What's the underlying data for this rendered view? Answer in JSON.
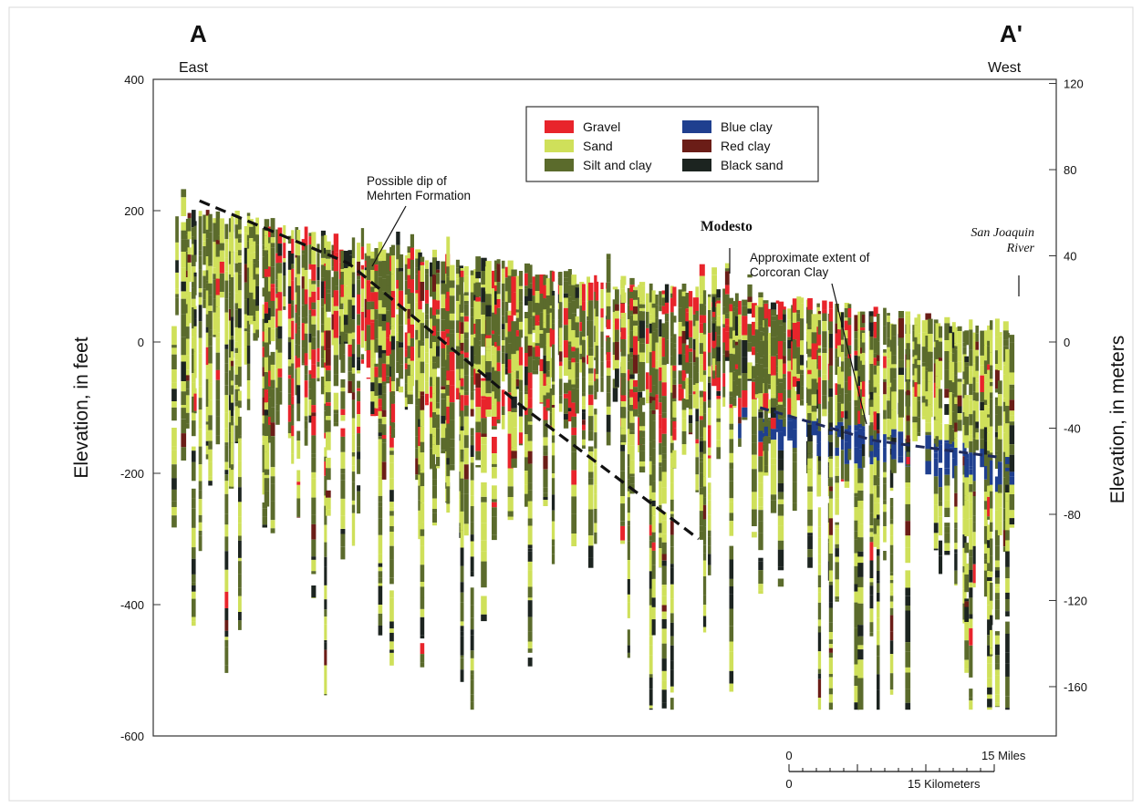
{
  "chart_data": {
    "type": "cross-section",
    "section_start": "A",
    "section_end": "A'",
    "left_direction": "East",
    "right_direction": "West",
    "ylabel_left": "Elevation, in feet",
    "ylabel_right": "Elevation, in meters",
    "ylim_feet": [
      -600,
      400
    ],
    "ylim_meters": [
      -182.88,
      121.92
    ],
    "yticks_feet": [
      "400",
      "200",
      "0",
      "-200",
      "-400",
      "-600"
    ],
    "yticks_meters": [
      "120",
      "80",
      "40",
      "0",
      "-40",
      "-80",
      "-120",
      "-160"
    ],
    "legend_position": "top-center",
    "legend": [
      {
        "label": "Gravel",
        "color": "#e8242b"
      },
      {
        "label": "Sand",
        "color": "#cfe05a"
      },
      {
        "label": "Silt and clay",
        "color": "#5b6b2c"
      },
      {
        "label": "Blue clay",
        "color": "#1f3f8f"
      },
      {
        "label": "Red clay",
        "color": "#6b1d17"
      },
      {
        "label": "Black sand",
        "color": "#1c2420"
      }
    ],
    "annotations": {
      "mehrten": "Possible dip of\nMehrten Formation",
      "modesto": "Modesto",
      "corcoran": "Approximate extent of\nCorcoran Clay",
      "river": "San Joaquin\nRiver"
    },
    "mehrten_dip_feet": [
      [
        0.03,
        215
      ],
      [
        0.2,
        120
      ],
      [
        0.4,
        -100
      ],
      [
        0.6,
        -300
      ]
    ],
    "corcoran_clay_feet": [
      [
        0.67,
        -100
      ],
      [
        0.8,
        -150
      ],
      [
        0.94,
        -175
      ]
    ],
    "land_surface_feet": [
      [
        0.0,
        210
      ],
      [
        0.08,
        200
      ],
      [
        0.2,
        160
      ],
      [
        0.35,
        130
      ],
      [
        0.5,
        105
      ],
      [
        0.65,
        80
      ],
      [
        0.8,
        55
      ],
      [
        0.9,
        40
      ],
      [
        0.95,
        35
      ]
    ],
    "scale_bar": {
      "miles_zero": "0",
      "miles_label": "15 Miles",
      "km_zero": "0",
      "km_label": "15 Kilometers"
    }
  }
}
